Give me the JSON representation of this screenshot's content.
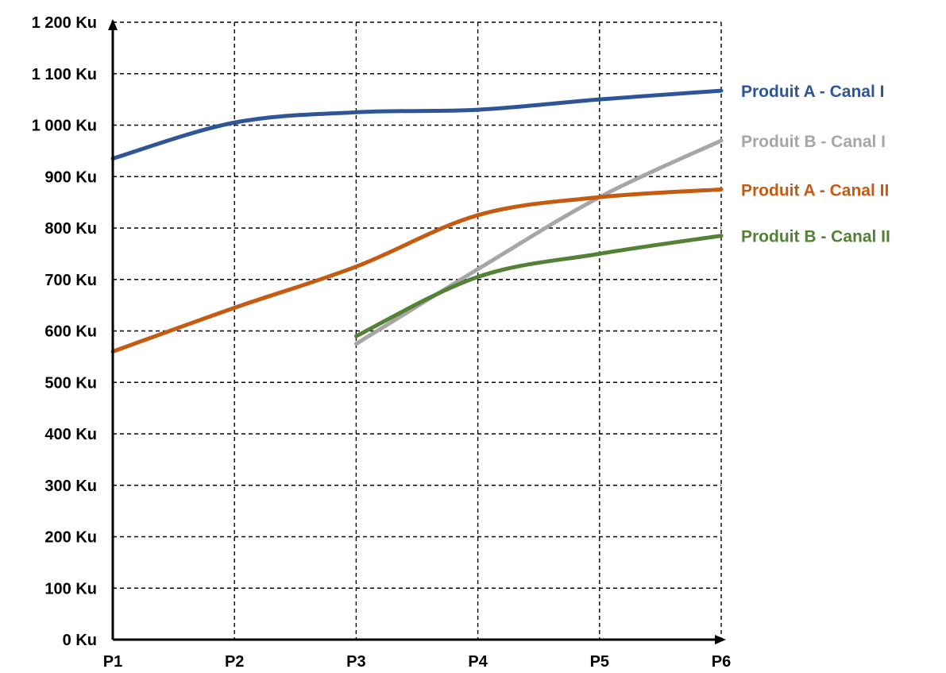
{
  "chart_data": {
    "type": "line",
    "categories": [
      "P1",
      "P2",
      "P3",
      "P4",
      "P5",
      "P6"
    ],
    "y_ticks": [
      "0 Ku",
      "100 Ku",
      "200 Ku",
      "300 Ku",
      "400 Ku",
      "500 Ku",
      "600 Ku",
      "700 Ku",
      "800 Ku",
      "900 Ku",
      "1 000 Ku",
      "1 100 Ku",
      "1 200 Ku"
    ],
    "ylim": [
      0,
      1200
    ],
    "grid": true,
    "legend_position": "right",
    "series": [
      {
        "name": "Produit A - Canal I",
        "color": "#2E5597",
        "values": [
          935,
          1005,
          1025,
          1030,
          1050,
          1067
        ]
      },
      {
        "name": "Produit B - Canal I",
        "color": "#A6A6A6",
        "values": [
          null,
          null,
          575,
          720,
          860,
          970
        ]
      },
      {
        "name": "Produit A - Canal II",
        "color": "#C55A11",
        "values": [
          560,
          645,
          725,
          825,
          860,
          875
        ]
      },
      {
        "name": "Produit B - Canal II",
        "color": "#538135",
        "values": [
          null,
          null,
          590,
          705,
          750,
          785
        ]
      }
    ]
  }
}
